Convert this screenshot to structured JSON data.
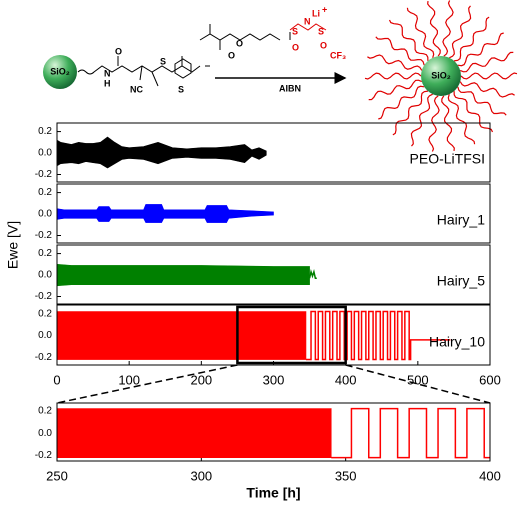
{
  "scheme": {
    "left_particle": "SiO₂",
    "right_particle": "SiO₂",
    "reagent": "AIBN",
    "atoms": [
      "H",
      "N",
      "O",
      "NC",
      "S",
      "S",
      "O",
      "O",
      "O",
      "S",
      "N",
      "Li",
      "+",
      "S",
      "O",
      "CF₃"
    ]
  },
  "chart_data": [
    {
      "type": "line",
      "annotation": "PEO-LiTFSI",
      "xlim": [
        0,
        600
      ],
      "ylim": [
        -0.27,
        0.28
      ],
      "yticks": [
        0.2,
        {
          "value": 0,
          "label": "0.0"
        },
        -0.2
      ],
      "bands": [
        {
          "color": "#000000",
          "x": [
            0,
            5,
            20,
            30,
            40,
            50,
            60,
            70,
            80,
            90,
            100,
            120,
            140,
            160,
            180,
            200,
            220,
            240,
            260,
            270,
            280,
            290
          ],
          "upper": [
            0.12,
            0.1,
            0.08,
            0.1,
            0.09,
            0.09,
            0.1,
            0.15,
            0.1,
            0.06,
            0.05,
            0.06,
            0.1,
            0.05,
            0.04,
            0.05,
            0.05,
            0.06,
            0.08,
            0.03,
            0.05,
            0.02
          ],
          "lower": [
            -0.12,
            -0.1,
            -0.09,
            -0.1,
            -0.08,
            -0.09,
            -0.1,
            -0.14,
            -0.1,
            -0.06,
            -0.05,
            -0.06,
            -0.1,
            -0.05,
            -0.04,
            -0.05,
            -0.05,
            -0.06,
            -0.09,
            -0.03,
            -0.06,
            -0.02
          ]
        }
      ],
      "lines": []
    },
    {
      "type": "line",
      "annotation": "Hairy_1",
      "xlim": [
        0,
        600
      ],
      "ylim": [
        -0.27,
        0.28
      ],
      "yticks": [
        0.2,
        {
          "value": 0,
          "label": "0.0"
        },
        -0.2
      ],
      "bands": [
        {
          "color": "#0000ff",
          "x": [
            0,
            10,
            55,
            58,
            72,
            75,
            120,
            123,
            145,
            148,
            205,
            208,
            235,
            238,
            270,
            300
          ],
          "upper": [
            0.05,
            0.04,
            0.04,
            0.07,
            0.07,
            0.04,
            0.04,
            0.09,
            0.09,
            0.04,
            0.04,
            0.08,
            0.08,
            0.04,
            0.03,
            0.02
          ],
          "lower": [
            -0.05,
            -0.04,
            -0.04,
            -0.07,
            -0.07,
            -0.04,
            -0.04,
            -0.08,
            -0.08,
            -0.04,
            -0.04,
            -0.08,
            -0.08,
            -0.04,
            -0.02,
            -0.01
          ]
        }
      ],
      "lines": []
    },
    {
      "type": "line",
      "annotation": "Hairy_5",
      "ylabel": "Ewe [V]",
      "xlim": [
        0,
        600
      ],
      "ylim": [
        -0.27,
        0.28
      ],
      "yticks": [
        0.2,
        {
          "value": 0,
          "label": "0.0"
        },
        -0.2
      ],
      "bands": [
        {
          "color": "#008000",
          "x": [
            0,
            20,
            100,
            200,
            300,
            350
          ],
          "upper": [
            0.1,
            0.09,
            0.09,
            0.09,
            0.08,
            0.08
          ],
          "lower": [
            -0.1,
            -0.09,
            -0.09,
            -0.09,
            -0.09,
            -0.09
          ]
        }
      ],
      "lines": [
        {
          "color": "#008000",
          "x": [
            350,
            352,
            354,
            356,
            358,
            360
          ],
          "values": [
            -0.03,
            0.03,
            -0.01,
            0.03,
            -0.03,
            -0.03
          ]
        }
      ]
    },
    {
      "type": "line",
      "annotation": "Hairy_10",
      "xlim": [
        0,
        600
      ],
      "ylim": [
        -0.27,
        0.28
      ],
      "yticks": [
        0.2,
        {
          "value": 0,
          "label": "0.0"
        },
        -0.2
      ],
      "xticks": [
        0,
        100,
        200,
        300,
        400,
        500,
        600
      ],
      "bands": [
        {
          "color": "#ff0000",
          "x": [
            0,
            100,
            200,
            300,
            345
          ],
          "upper": [
            0.22,
            0.22,
            0.22,
            0.22,
            0.22
          ],
          "lower": [
            -0.22,
            -0.22,
            -0.22,
            -0.22,
            -0.22
          ]
        }
      ],
      "lines": [
        {
          "color": "#ff0000",
          "x": [
            345,
            352,
            352,
            358,
            358,
            362,
            362,
            368,
            368,
            372,
            372,
            378,
            378,
            382,
            382,
            388,
            388,
            392,
            392,
            398,
            398,
            402,
            402,
            408,
            408,
            412,
            412,
            418,
            418,
            422,
            422,
            428,
            428,
            432,
            432,
            438,
            438,
            442,
            442,
            448,
            448,
            452,
            452,
            458,
            458,
            462,
            462,
            468,
            468,
            472,
            472,
            478,
            478,
            482,
            482,
            488,
            488,
            490,
            490,
            545
          ],
          "values": [
            -0.22,
            -0.22,
            0.22,
            0.22,
            -0.22,
            -0.22,
            0.22,
            0.22,
            -0.22,
            -0.22,
            0.22,
            0.22,
            -0.22,
            -0.22,
            0.22,
            0.22,
            -0.22,
            -0.22,
            0.22,
            0.22,
            -0.22,
            -0.22,
            0.22,
            0.22,
            -0.22,
            -0.22,
            0.22,
            0.22,
            -0.22,
            -0.22,
            0.22,
            0.22,
            -0.22,
            -0.22,
            0.22,
            0.22,
            -0.22,
            -0.22,
            0.22,
            0.22,
            -0.22,
            -0.22,
            0.22,
            0.22,
            -0.22,
            -0.22,
            0.22,
            0.22,
            -0.22,
            -0.22,
            0.22,
            0.22,
            -0.22,
            -0.22,
            0.22,
            0.22,
            -0.22,
            -0.22,
            -0.04,
            -0.04
          ]
        }
      ]
    },
    {
      "type": "line",
      "xlabel": "Time [h]",
      "xlim": [
        250,
        400
      ],
      "ylim": [
        -0.25,
        0.27
      ],
      "yticks": [
        0.2,
        {
          "value": 0,
          "label": "0.0"
        },
        -0.2
      ],
      "xticks": [
        250,
        300,
        350,
        400
      ],
      "bands": [
        {
          "color": "#ff0000",
          "x": [
            250,
            300,
            345
          ],
          "upper": [
            0.22,
            0.22,
            0.22
          ],
          "lower": [
            -0.22,
            -0.22,
            -0.22
          ]
        }
      ],
      "lines": [
        {
          "color": "#ff0000",
          "x": [
            345,
            352,
            352,
            358,
            358,
            362,
            362,
            368,
            368,
            372,
            372,
            378,
            378,
            382,
            382,
            388,
            388,
            392,
            392,
            398,
            398,
            400
          ],
          "values": [
            -0.22,
            -0.22,
            0.22,
            0.22,
            -0.22,
            -0.22,
            0.22,
            0.22,
            -0.22,
            -0.22,
            0.22,
            0.22,
            -0.22,
            -0.22,
            0.22,
            0.22,
            -0.22,
            -0.22,
            0.22,
            0.22,
            -0.22,
            -0.22
          ]
        }
      ]
    }
  ]
}
